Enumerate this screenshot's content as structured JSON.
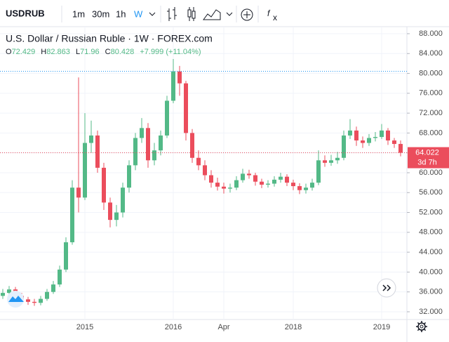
{
  "toolbar": {
    "symbol": "USDRUB",
    "intervals": [
      "1m",
      "30m",
      "1h",
      "W"
    ]
  },
  "chart_data": {
    "type": "candlestick",
    "title": "U.S. Dollar / Russian Ruble · 1W · FOREX.com",
    "ohlc": [
      {
        "label": "O",
        "value": 72.429
      },
      {
        "label": "H",
        "value": 82.863
      },
      {
        "label": "L",
        "value": 71.96
      },
      {
        "label": "C",
        "value": 80.428
      }
    ],
    "change": "+7.999 (+11.04%)",
    "countdown": "3d 7h",
    "up_color": "#53b987",
    "down_color": "#eb4d5c",
    "categories": [
      null,
      null,
      null,
      null,
      null,
      null,
      null,
      null,
      null,
      null,
      null,
      null,
      null,
      "2015",
      null,
      null,
      null,
      null,
      null,
      null,
      null,
      null,
      null,
      null,
      null,
      null,
      null,
      "2016",
      null,
      null,
      null,
      null,
      null,
      null,
      null,
      "Apr",
      null,
      null,
      null,
      null,
      null,
      null,
      null,
      null,
      null,
      null,
      "2018",
      null,
      null,
      null,
      null,
      null,
      null,
      null,
      null,
      null,
      null,
      null,
      null,
      null,
      "2019",
      null,
      null,
      null
    ],
    "open": [
      35.2,
      35.8,
      36.5,
      35.2,
      34.5,
      34.0,
      33.8,
      34.6,
      36.0,
      37.5,
      40.5,
      46.0,
      57.0,
      55.0,
      66.0,
      67.5,
      61.0,
      54.0,
      50.5,
      52.0,
      57.0,
      61.5,
      67.0,
      69.0,
      62.5,
      64.5,
      67.5,
      74.5,
      80.4,
      78.0,
      68.0,
      63.0,
      61.5,
      59.5,
      58.0,
      57.2,
      56.8,
      57.0,
      58.5,
      59.8,
      59.5,
      58.2,
      57.6,
      57.8,
      58.6,
      59.2,
      58.0,
      57.3,
      56.5,
      57.0,
      58.0,
      62.5,
      62.0,
      62.5,
      63.0,
      67.5,
      68.5,
      66.5,
      66.0,
      67.0,
      67.2,
      68.5,
      66.5,
      65.8
    ],
    "high": [
      36.6,
      37.2,
      37.0,
      35.8,
      35.0,
      34.6,
      35.2,
      36.6,
      38.2,
      41.3,
      47.0,
      58.5,
      79.2,
      72.0,
      70.5,
      68.5,
      62.0,
      55.0,
      53.5,
      58.0,
      62.5,
      68.0,
      71.0,
      70.0,
      66.0,
      68.5,
      75.5,
      82.9,
      81.5,
      78.5,
      68.8,
      64.5,
      62.5,
      60.5,
      59.0,
      58.0,
      57.8,
      59.3,
      60.8,
      60.6,
      60.0,
      58.8,
      58.5,
      59.3,
      60.0,
      59.7,
      58.6,
      57.9,
      57.8,
      58.8,
      64.5,
      63.5,
      63.6,
      64.2,
      68.5,
      70.8,
      69.3,
      67.3,
      67.8,
      68.2,
      69.8,
      69.0,
      67.0,
      66.5
    ],
    "low": [
      34.6,
      35.2,
      34.6,
      33.9,
      33.4,
      33.2,
      33.3,
      34.2,
      35.6,
      37.0,
      40.0,
      45.5,
      52.0,
      54.5,
      64.0,
      60.0,
      52.5,
      49.0,
      49.2,
      51.0,
      56.0,
      60.5,
      66.0,
      61.0,
      61.5,
      63.5,
      67.0,
      74.0,
      75.5,
      66.5,
      62.0,
      60.5,
      58.5,
      57.0,
      56.4,
      55.8,
      56.0,
      56.5,
      58.0,
      58.8,
      57.4,
      56.9,
      57.0,
      57.2,
      58.0,
      57.3,
      56.5,
      55.7,
      55.8,
      56.4,
      57.5,
      61.2,
      61.4,
      61.8,
      62.5,
      66.8,
      65.4,
      65.0,
      65.4,
      66.3,
      66.8,
      65.6,
      65.0,
      63.3
    ],
    "close": [
      35.8,
      36.5,
      35.2,
      34.5,
      34.0,
      33.8,
      34.6,
      36.0,
      37.5,
      40.5,
      46.0,
      57.0,
      55.0,
      66.0,
      67.5,
      61.0,
      54.0,
      50.5,
      52.0,
      57.0,
      61.5,
      67.0,
      69.0,
      62.5,
      64.5,
      67.5,
      74.5,
      80.4,
      78.0,
      68.0,
      63.0,
      61.5,
      59.5,
      58.0,
      57.2,
      56.8,
      57.0,
      58.5,
      59.8,
      59.5,
      58.2,
      57.6,
      57.8,
      58.6,
      59.2,
      58.0,
      57.3,
      56.5,
      57.0,
      58.0,
      62.5,
      62.0,
      62.5,
      63.0,
      67.5,
      68.5,
      66.5,
      66.0,
      67.0,
      67.2,
      68.5,
      66.5,
      65.8,
      64.022
    ],
    "ylim": [
      30.44,
      89.41
    ],
    "yticks": [
      {
        "value": 32,
        "label": "32.000"
      },
      {
        "value": 36,
        "label": "36.000"
      },
      {
        "value": 40,
        "label": "40.000"
      },
      {
        "value": 44,
        "label": "44.000"
      },
      {
        "value": 48,
        "label": "48.000"
      },
      {
        "value": 52,
        "label": "52.000"
      },
      {
        "value": 56,
        "label": "56.000"
      },
      {
        "value": 60,
        "label": "60.000"
      },
      {
        "value": 64,
        "label": "64.000"
      },
      {
        "value": 68,
        "label": "68.000"
      },
      {
        "value": 72,
        "label": "72.000"
      },
      {
        "value": 76,
        "label": "76.000"
      },
      {
        "value": 80,
        "label": "80.000"
      },
      {
        "value": 84,
        "label": "84.000"
      },
      {
        "value": 88,
        "label": "88.000"
      }
    ],
    "grid": true
  }
}
